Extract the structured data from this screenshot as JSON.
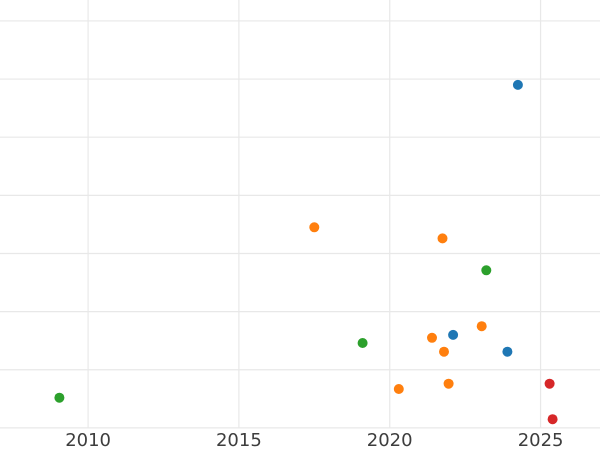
{
  "chart_data": {
    "type": "scatter",
    "title": "",
    "xlabel": "",
    "ylabel": "",
    "grid": true,
    "legend": "none",
    "background_color": "#ffffff",
    "gridline_color": "#e8e8e8",
    "tick_label_color": "#3d3d3d",
    "tick_label_font_px": 18,
    "marker_radius_px": 5,
    "x_tick_values": [
      2010,
      2015,
      2020,
      2025
    ],
    "x_tick_labels": [
      "2010",
      "2015",
      "2020",
      "2025"
    ],
    "y_tick_labels_visible": false,
    "y_gridline_values": [
      0,
      1,
      2,
      3,
      4,
      5,
      6,
      7
    ],
    "xlim": [
      2007.08,
      2026.97
    ],
    "ylim": [
      -0.38,
      7.36
    ],
    "series": [
      {
        "name": "blue",
        "color": "#1f77b4",
        "points": [
          {
            "x": 2022.1,
            "y": 1.6
          },
          {
            "x": 2023.9,
            "y": 1.31
          },
          {
            "x": 2024.25,
            "y": 5.9
          }
        ]
      },
      {
        "name": "orange",
        "color": "#ff7f0e",
        "points": [
          {
            "x": 2017.5,
            "y": 3.45
          },
          {
            "x": 2020.3,
            "y": 0.67
          },
          {
            "x": 2021.4,
            "y": 1.55
          },
          {
            "x": 2021.75,
            "y": 3.26
          },
          {
            "x": 2021.8,
            "y": 1.31
          },
          {
            "x": 2021.95,
            "y": 0.76
          },
          {
            "x": 2023.05,
            "y": 1.75
          }
        ]
      },
      {
        "name": "green",
        "color": "#2ca02c",
        "points": [
          {
            "x": 2009.05,
            "y": 0.52
          },
          {
            "x": 2019.1,
            "y": 1.46
          },
          {
            "x": 2023.2,
            "y": 2.71
          }
        ]
      },
      {
        "name": "red",
        "color": "#d62728",
        "points": [
          {
            "x": 2025.3,
            "y": 0.76
          },
          {
            "x": 2025.4,
            "y": 0.15
          }
        ]
      }
    ]
  }
}
